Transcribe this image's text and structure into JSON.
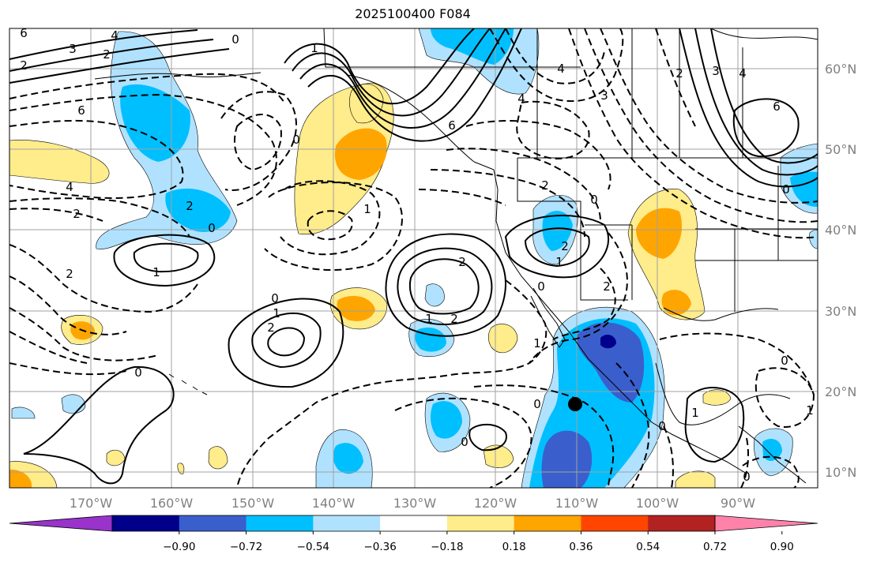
{
  "title": "2025100400 F084",
  "lon_labels": [
    "170°W",
    "160°W",
    "150°W",
    "140°W",
    "130°W",
    "120°W",
    "110°W",
    "100°W",
    "90°W"
  ],
  "lat_labels": [
    "60°N",
    "50°N",
    "40°N",
    "30°N",
    "20°N",
    "10°N"
  ],
  "colorbar": {
    "ticks": [
      "−0.90",
      "−0.72",
      "−0.54",
      "−0.36",
      "−0.18",
      "0.18",
      "0.36",
      "0.54",
      "0.72",
      "0.90"
    ],
    "colors": [
      "#9933cc",
      "#00008b",
      "#3a5fcd",
      "#00bfff",
      "#b0e2ff",
      "#ffffff",
      "#ffec8b",
      "#ffa500",
      "#ff4500",
      "#b22222",
      "#ff82ab"
    ]
  },
  "colors": {
    "pos1": "#ffec8b",
    "pos2": "#ffa500",
    "neg1": "#b0e2ff",
    "neg2": "#00bfff",
    "neg3": "#3a5fcd",
    "neg4": "#00008b"
  },
  "contour_labels": [
    "6",
    "4",
    "3",
    "2",
    "2",
    "0",
    "1",
    "6",
    "4",
    "2",
    "0",
    "2",
    "2",
    "0",
    "1",
    "1",
    "0",
    "2",
    "1",
    "0",
    "2",
    "1",
    "2",
    "0",
    "1",
    "2",
    "0",
    "2",
    "3",
    "4",
    "6",
    "0",
    "1",
    "0",
    "0",
    "2",
    "1",
    "4",
    "3",
    "2",
    "6",
    "4",
    "0",
    "0",
    "1",
    "0"
  ]
}
